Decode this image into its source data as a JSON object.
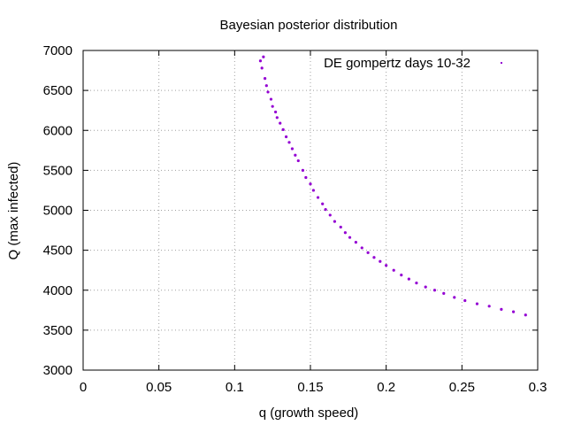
{
  "chart_data": {
    "type": "scatter",
    "title": "Bayesian posterior distribution",
    "xlabel": "q (growth speed)",
    "ylabel": "Q (max infected)",
    "xlim": [
      0,
      0.3
    ],
    "ylim": [
      3000,
      7000
    ],
    "xticks": [
      "0",
      "0.05",
      "0.1",
      "0.15",
      "0.2",
      "0.25",
      "0.3"
    ],
    "yticks": [
      "3000",
      "3500",
      "4000",
      "4500",
      "5000",
      "5500",
      "6000",
      "6500",
      "7000"
    ],
    "grid": true,
    "legend": "top-right",
    "series": [
      {
        "name": "DE gompertz days 10-32",
        "color": "#9400d3",
        "points": [
          [
            0.117,
            6870
          ],
          [
            0.118,
            6780
          ],
          [
            0.119,
            6920
          ],
          [
            0.12,
            6650
          ],
          [
            0.121,
            6560
          ],
          [
            0.122,
            6480
          ],
          [
            0.124,
            6390
          ],
          [
            0.125,
            6300
          ],
          [
            0.127,
            6230
          ],
          [
            0.128,
            6160
          ],
          [
            0.13,
            6090
          ],
          [
            0.132,
            6010
          ],
          [
            0.134,
            5920
          ],
          [
            0.136,
            5850
          ],
          [
            0.138,
            5770
          ],
          [
            0.14,
            5690
          ],
          [
            0.142,
            5620
          ],
          [
            0.145,
            5500
          ],
          [
            0.147,
            5410
          ],
          [
            0.15,
            5330
          ],
          [
            0.152,
            5250
          ],
          [
            0.155,
            5160
          ],
          [
            0.158,
            5080
          ],
          [
            0.16,
            5010
          ],
          [
            0.163,
            4940
          ],
          [
            0.166,
            4860
          ],
          [
            0.17,
            4790
          ],
          [
            0.173,
            4720
          ],
          [
            0.176,
            4660
          ],
          [
            0.18,
            4600
          ],
          [
            0.184,
            4530
          ],
          [
            0.188,
            4470
          ],
          [
            0.192,
            4410
          ],
          [
            0.196,
            4360
          ],
          [
            0.2,
            4310
          ],
          [
            0.205,
            4250
          ],
          [
            0.21,
            4190
          ],
          [
            0.215,
            4140
          ],
          [
            0.22,
            4090
          ],
          [
            0.226,
            4040
          ],
          [
            0.232,
            4000
          ],
          [
            0.238,
            3960
          ],
          [
            0.245,
            3910
          ],
          [
            0.252,
            3870
          ],
          [
            0.26,
            3830
          ],
          [
            0.268,
            3800
          ],
          [
            0.276,
            3760
          ],
          [
            0.284,
            3730
          ],
          [
            0.292,
            3690
          ]
        ]
      }
    ]
  }
}
